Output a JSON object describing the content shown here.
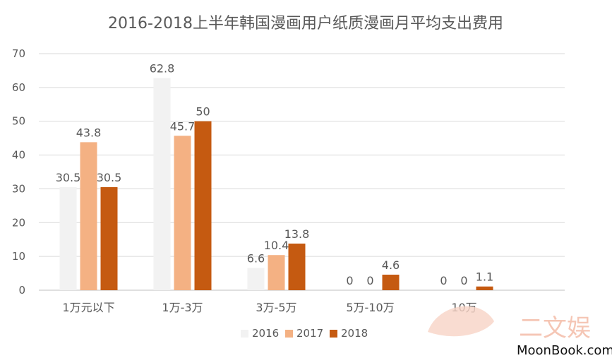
{
  "chart_data": {
    "type": "bar",
    "title": "2016-2018上半年韩国漫画用户纸质漫画月平均支出费用",
    "categories": [
      "1万元以下",
      "1万-3万",
      "3万-5万",
      "5万-10万",
      "10万"
    ],
    "series": [
      {
        "name": "2016",
        "values": [
          30.5,
          62.8,
          6.6,
          0,
          0
        ],
        "color": "#f2f2f2"
      },
      {
        "name": "2017",
        "values": [
          43.8,
          45.7,
          10.4,
          0,
          0
        ],
        "color": "#f4b183"
      },
      {
        "name": "2018",
        "values": [
          30.5,
          50,
          13.8,
          4.6,
          1.1
        ],
        "color": "#c55a11"
      }
    ],
    "ylim": [
      0,
      70
    ],
    "yticks": [
      0,
      10,
      20,
      30,
      40,
      50,
      60,
      70
    ],
    "grid": true,
    "legend_position": "bottom",
    "xlabel": "",
    "ylabel": ""
  },
  "watermark": {
    "brand": "MoonBook.com",
    "cjk": "二文娱"
  }
}
